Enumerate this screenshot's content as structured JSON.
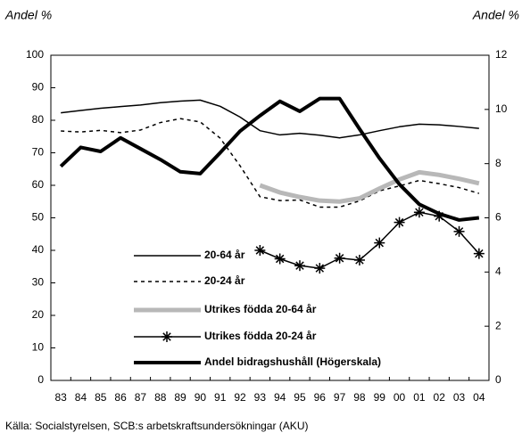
{
  "chart_data": {
    "type": "line",
    "y_label": "Andel %",
    "y2_label": "Andel %",
    "source": "Källa: Socialstyrelsen, SCB:s arbetskraftsundersökningar (AKU)",
    "categories": [
      "83",
      "84",
      "85",
      "86",
      "87",
      "88",
      "89",
      "90",
      "91",
      "92",
      "93",
      "94",
      "95",
      "96",
      "97",
      "98",
      "99",
      "00",
      "01",
      "02",
      "03",
      "04"
    ],
    "ylim": [
      0,
      100
    ],
    "yticks": [
      0,
      10,
      20,
      30,
      40,
      50,
      60,
      70,
      80,
      90,
      100
    ],
    "y2lim": [
      0,
      12
    ],
    "y2ticks": [
      0,
      2,
      4,
      6,
      8,
      10,
      12
    ],
    "series": [
      {
        "name": "20-64 år",
        "color": "#000000",
        "linewidth": 1.5,
        "linestyle": "solid",
        "values": [
          82.3,
          83,
          83.7,
          84.2,
          84.7,
          85.4,
          85.9,
          86.2,
          84.3,
          81,
          76.8,
          75.5,
          76,
          75.4,
          74.6,
          75.5,
          76.8,
          78,
          78.8,
          78.6,
          78.1,
          77.5
        ]
      },
      {
        "name": "20-24 år",
        "color": "#000000",
        "linewidth": 1.5,
        "linestyle": "dashed",
        "values": [
          76.7,
          76.4,
          76.9,
          76.2,
          77,
          79.3,
          80.5,
          79.5,
          74.5,
          66,
          56.5,
          55.3,
          55.5,
          53.3,
          53.3,
          55.2,
          58.3,
          59.8,
          61.5,
          60.5,
          59.3,
          57.5
        ]
      },
      {
        "name": "Utrikes födda 20-64 år",
        "color": "#b8b8b8",
        "linewidth": 5,
        "linestyle": "solid",
        "values": [
          null,
          null,
          null,
          null,
          null,
          null,
          null,
          null,
          null,
          null,
          60,
          57.8,
          56.4,
          55.3,
          55,
          56,
          59,
          61.8,
          64,
          63.2,
          62,
          60.6
        ]
      },
      {
        "name": "Utrikes födda 20-24 år",
        "color": "#000000",
        "linewidth": 1.5,
        "linestyle": "solid",
        "marker": "asterisk",
        "values": [
          null,
          null,
          null,
          null,
          null,
          null,
          null,
          null,
          null,
          null,
          40,
          37.4,
          35.3,
          34.5,
          37.6,
          37,
          42.3,
          48.6,
          51.7,
          50.5,
          45.8,
          39
        ]
      },
      {
        "name": "Andel bidragshushåll (Högerskala)",
        "color": "#000000",
        "linewidth": 4,
        "linestyle": "solid",
        "axis": "y2",
        "values": [
          7.9,
          8.6,
          8.45,
          8.95,
          8.55,
          8.15,
          7.7,
          7.63,
          8.4,
          9.2,
          9.77,
          10.3,
          9.93,
          10.4,
          10.4,
          9.28,
          8.2,
          7.24,
          6.5,
          6.15,
          5.92,
          6.0
        ]
      }
    ]
  }
}
